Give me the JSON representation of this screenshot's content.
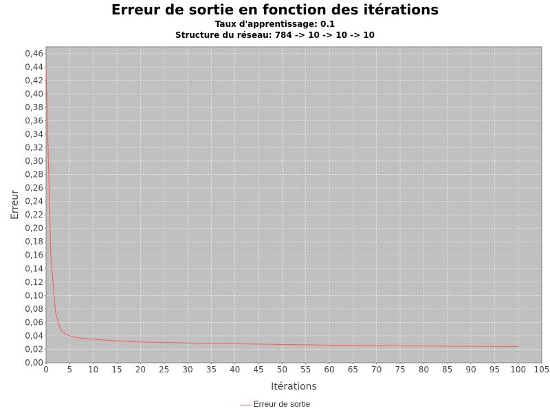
{
  "colors": {
    "plot_background": "#c0c0c0",
    "series_line": "#ff5555",
    "gridline": "#ffffff"
  },
  "chart_data": {
    "type": "line",
    "title": "Erreur de sortie en fonction des itérations",
    "subtitle": "Taux d'apprentissage: 0.1",
    "subtitle2": "Structure du réseau: 784 -> 10 -> 10 -> 10",
    "xlabel": "Itérations",
    "ylabel": "Erreur",
    "xlim": [
      0,
      105
    ],
    "ylim": [
      0,
      0.47
    ],
    "x_ticks": [
      "0",
      "5",
      "10",
      "15",
      "20",
      "25",
      "30",
      "35",
      "40",
      "45",
      "50",
      "55",
      "60",
      "65",
      "70",
      "75",
      "80",
      "85",
      "90",
      "95",
      "100",
      "105"
    ],
    "y_ticks": [
      "0,00",
      "0,02",
      "0,04",
      "0,06",
      "0,08",
      "0,10",
      "0,12",
      "0,14",
      "0,16",
      "0,18",
      "0,20",
      "0,22",
      "0,24",
      "0,26",
      "0,28",
      "0,30",
      "0,32",
      "0,34",
      "0,36",
      "0,38",
      "0,40",
      "0,42",
      "0,44",
      "0,46"
    ],
    "grid": true,
    "legend_position": "bottom",
    "series": [
      {
        "name": "Erreur de sortie",
        "x": [
          0,
          1,
          2,
          3,
          4,
          5,
          6,
          7,
          8,
          9,
          10,
          12,
          14,
          16,
          18,
          20,
          22,
          24,
          26,
          28,
          30,
          32,
          34,
          36,
          38,
          40,
          42,
          44,
          46,
          48,
          50,
          52,
          54,
          56,
          58,
          60,
          62,
          64,
          66,
          68,
          70,
          72,
          74,
          76,
          78,
          80,
          82,
          84,
          86,
          88,
          90,
          92,
          94,
          96,
          98,
          100
        ],
        "y": [
          0.44,
          0.16,
          0.075,
          0.05,
          0.043,
          0.04,
          0.038,
          0.037,
          0.036,
          0.0355,
          0.035,
          0.034,
          0.033,
          0.0322,
          0.0315,
          0.031,
          0.0305,
          0.0302,
          0.03,
          0.0297,
          0.0295,
          0.0292,
          0.029,
          0.0287,
          0.0285,
          0.0283,
          0.028,
          0.0278,
          0.0276,
          0.0274,
          0.0272,
          0.027,
          0.0268,
          0.0266,
          0.0264,
          0.0262,
          0.026,
          0.0258,
          0.0257,
          0.0256,
          0.0255,
          0.0253,
          0.0252,
          0.0251,
          0.025,
          0.0249,
          0.0248,
          0.0247,
          0.0246,
          0.0245,
          0.0244,
          0.0243,
          0.0243,
          0.0242,
          0.0241,
          0.024
        ]
      }
    ]
  }
}
